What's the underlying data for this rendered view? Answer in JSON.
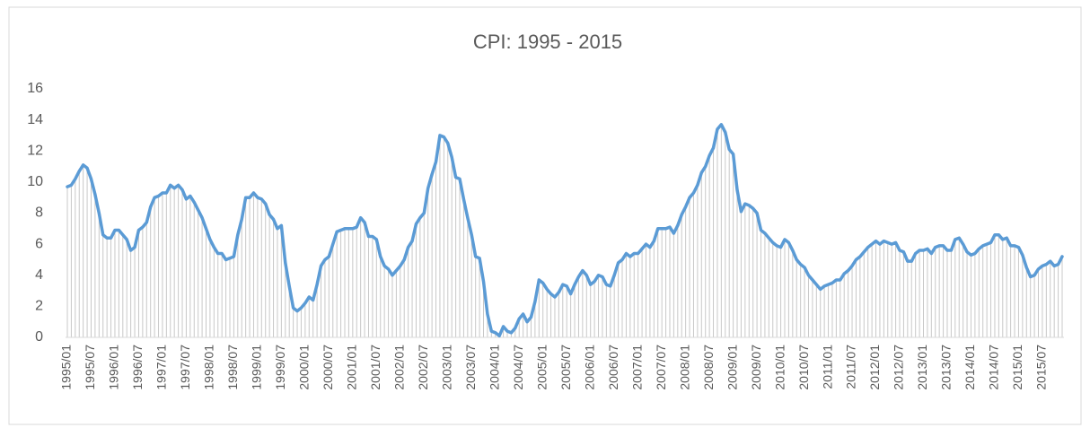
{
  "chart_data": {
    "type": "line",
    "title": "CPI: 1995 - 2015",
    "categories": [
      "1995/01",
      null,
      null,
      null,
      null,
      null,
      "1995/07",
      null,
      null,
      null,
      null,
      null,
      "1996/01",
      null,
      null,
      null,
      null,
      null,
      "1996/07",
      null,
      null,
      null,
      null,
      null,
      "1997/01",
      null,
      null,
      null,
      null,
      null,
      "1997/07",
      null,
      null,
      null,
      null,
      null,
      "1998/01",
      null,
      null,
      null,
      null,
      null,
      "1998/07",
      null,
      null,
      null,
      null,
      null,
      "1999/01",
      null,
      null,
      null,
      null,
      null,
      "1999/07",
      null,
      null,
      null,
      null,
      null,
      "2000/01",
      null,
      null,
      null,
      null,
      null,
      "2000/07",
      null,
      null,
      null,
      null,
      null,
      "2001/01",
      null,
      null,
      null,
      null,
      null,
      "2001/07",
      null,
      null,
      null,
      null,
      null,
      "2002/01",
      null,
      null,
      null,
      null,
      null,
      "2002/07",
      null,
      null,
      null,
      null,
      null,
      "2003/01",
      null,
      null,
      null,
      null,
      null,
      "2003/07",
      null,
      null,
      null,
      null,
      null,
      "2004/01",
      null,
      null,
      null,
      null,
      null,
      "2004/07",
      null,
      null,
      null,
      null,
      null,
      "2005/01",
      null,
      null,
      null,
      null,
      null,
      "2005/07",
      null,
      null,
      null,
      null,
      null,
      "2006/01",
      null,
      null,
      null,
      null,
      null,
      "2006/07",
      null,
      null,
      null,
      null,
      null,
      "2007/01",
      null,
      null,
      null,
      null,
      null,
      "2007/07",
      null,
      null,
      null,
      null,
      null,
      "2008/01",
      null,
      null,
      null,
      null,
      null,
      "2008/07",
      null,
      null,
      null,
      null,
      null,
      "2009/01",
      null,
      null,
      null,
      null,
      null,
      "2009/07",
      null,
      null,
      null,
      null,
      null,
      "2010/01",
      null,
      null,
      null,
      null,
      null,
      "2010/07",
      null,
      null,
      null,
      null,
      null,
      "2011/01",
      null,
      null,
      null,
      null,
      null,
      "2011/07",
      null,
      null,
      null,
      null,
      null,
      "2012/01",
      null,
      null,
      null,
      null,
      null,
      "2012/07",
      null,
      null,
      null,
      null,
      null,
      "2013/01",
      null,
      null,
      null,
      null,
      null,
      "2013/07",
      null,
      null,
      null,
      null,
      null,
      "2014/01",
      null,
      null,
      null,
      null,
      null,
      "2014/07",
      null,
      null,
      null,
      null,
      null,
      "2015/01",
      null,
      null,
      null,
      null,
      null,
      "2015/07",
      null,
      null,
      null,
      null,
      null
    ],
    "values": [
      9.7,
      9.8,
      10.2,
      10.7,
      11.1,
      10.9,
      10.2,
      9.2,
      8.0,
      6.6,
      6.4,
      6.4,
      6.9,
      6.9,
      6.6,
      6.3,
      5.6,
      5.8,
      6.9,
      7.1,
      7.4,
      8.4,
      9.0,
      9.1,
      9.3,
      9.3,
      9.8,
      9.6,
      9.8,
      9.5,
      8.9,
      9.1,
      8.7,
      8.2,
      7.7,
      7.0,
      6.3,
      5.8,
      5.4,
      5.4,
      5.0,
      5.1,
      5.2,
      6.6,
      7.6,
      9.0,
      9.0,
      9.3,
      9.0,
      8.9,
      8.6,
      7.9,
      7.6,
      7.0,
      7.2,
      4.8,
      3.3,
      1.9,
      1.7,
      1.9,
      2.2,
      2.6,
      2.4,
      3.4,
      4.6,
      5.0,
      5.2,
      6.0,
      6.8,
      6.9,
      7.0,
      7.0,
      7.0,
      7.1,
      7.7,
      7.4,
      6.5,
      6.5,
      6.3,
      5.2,
      4.6,
      4.4,
      4.0,
      4.3,
      4.6,
      5.0,
      5.8,
      6.2,
      7.3,
      7.7,
      8.0,
      9.6,
      10.5,
      11.3,
      13.0,
      12.9,
      12.5,
      11.6,
      10.3,
      10.2,
      8.9,
      7.7,
      6.6,
      5.2,
      5.1,
      3.6,
      1.5,
      0.4,
      0.3,
      0.1,
      0.7,
      0.4,
      0.3,
      0.6,
      1.2,
      1.5,
      1.0,
      1.3,
      2.3,
      3.7,
      3.5,
      3.1,
      2.8,
      2.6,
      2.9,
      3.4,
      3.3,
      2.8,
      3.4,
      3.9,
      4.3,
      4.0,
      3.4,
      3.6,
      4.0,
      3.9,
      3.4,
      3.3,
      4.0,
      4.8,
      5.0,
      5.4,
      5.2,
      5.4,
      5.4,
      5.7,
      6.0,
      5.8,
      6.2,
      7.0,
      7.0,
      7.0,
      7.1,
      6.7,
      7.2,
      7.9,
      8.4,
      9.0,
      9.3,
      9.8,
      10.6,
      11.0,
      11.7,
      12.2,
      13.4,
      13.7,
      13.2,
      12.1,
      11.8,
      9.5,
      8.1,
      8.6,
      8.5,
      8.3,
      8.0,
      6.9,
      6.7,
      6.4,
      6.1,
      5.9,
      5.8,
      6.3,
      6.1,
      5.6,
      5.0,
      4.7,
      4.5,
      4.0,
      3.7,
      3.4,
      3.1,
      3.3,
      3.4,
      3.5,
      3.7,
      3.7,
      4.1,
      4.3,
      4.6,
      5.0,
      5.2,
      5.5,
      5.8,
      6.0,
      6.2,
      6.0,
      6.2,
      6.1,
      6.0,
      6.1,
      5.6,
      5.5,
      4.9,
      4.9,
      5.4,
      5.6,
      5.6,
      5.7,
      5.4,
      5.8,
      5.9,
      5.9,
      5.6,
      5.6,
      6.3,
      6.4,
      6.0,
      5.5,
      5.3,
      5.4,
      5.7,
      5.9,
      6.0,
      6.1,
      6.6,
      6.6,
      6.3,
      6.4,
      5.9,
      5.9,
      5.8,
      5.3,
      4.5,
      3.9,
      4.0,
      4.4,
      4.6,
      4.7,
      4.9,
      4.6,
      4.7,
      5.2
    ],
    "color": "#5b9bd5",
    "drop_line_color": "#c8c8c8",
    "ylim": [
      0,
      16
    ],
    "yticks": [
      0,
      2,
      4,
      6,
      8,
      10,
      12,
      14,
      16
    ],
    "grid": false
  }
}
